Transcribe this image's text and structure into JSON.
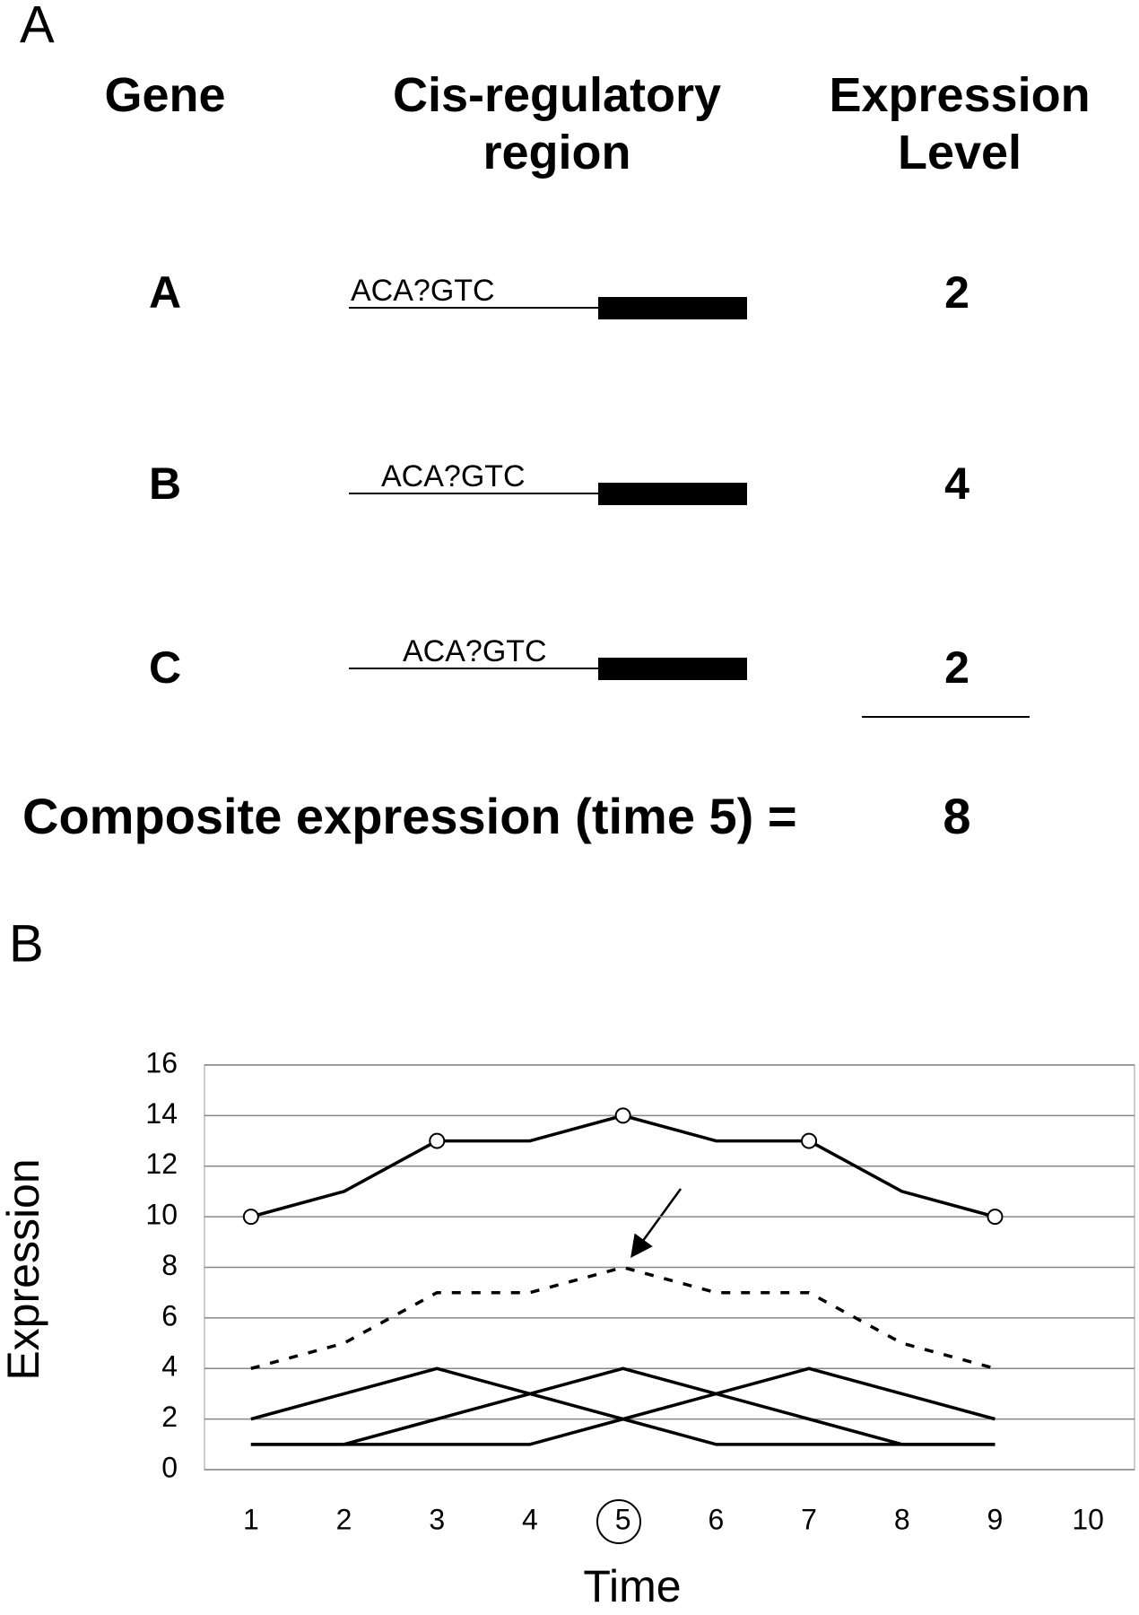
{
  "panel_a": {
    "label": "A",
    "columns": [
      "Gene",
      "Cis-regulatory region",
      "Expression Level"
    ],
    "rows": [
      {
        "gene": "A",
        "motif": "ACA?GTC",
        "level": 2
      },
      {
        "gene": "B",
        "motif": "ACA?GTC",
        "level": 4
      },
      {
        "gene": "C",
        "motif": "ACA?GTC",
        "level": 2
      }
    ],
    "composite": {
      "label": "Composite expression (time 5) =",
      "value": 8
    }
  },
  "chart_data": {
    "type": "line",
    "panel_label": "B",
    "x_label": "Time",
    "y_label": "Expression",
    "categories": [
      "1",
      "2",
      "3",
      "4",
      "5",
      "6",
      "7",
      "8",
      "9",
      "10"
    ],
    "ylim": [
      0,
      16
    ],
    "yticks": [
      0,
      2,
      4,
      6,
      8,
      10,
      12,
      14,
      16
    ],
    "grid": true,
    "series": [
      {
        "color": "#000000",
        "values": [
          10,
          11,
          13,
          13,
          14,
          13,
          13,
          11,
          10,
          null
        ],
        "marked": [
          true,
          false,
          true,
          false,
          true,
          false,
          true,
          false,
          true,
          false
        ]
      },
      {
        "color": "#000000",
        "dashed": true,
        "values": [
          4,
          5,
          7,
          7,
          8,
          7,
          7,
          5,
          4,
          null
        ]
      },
      {
        "color": "#000000",
        "values": [
          2,
          3,
          4,
          3,
          2,
          1,
          1,
          1,
          1,
          null
        ]
      },
      {
        "color": "#000000",
        "values": [
          1,
          1,
          2,
          3,
          4,
          3,
          2,
          1,
          1,
          null
        ]
      },
      {
        "color": "#000000",
        "values": [
          1,
          1,
          1,
          1,
          2,
          3,
          4,
          3,
          2,
          null
        ]
      }
    ]
  }
}
